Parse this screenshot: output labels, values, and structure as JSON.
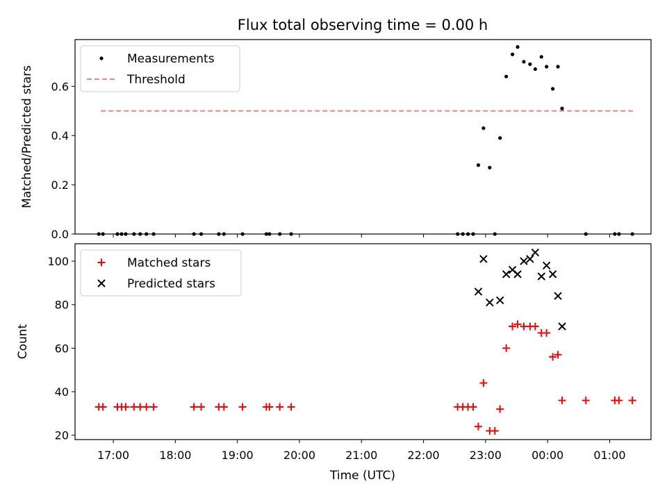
{
  "title": "Flux total observing time = 0.00 h",
  "colors": {
    "measurement": "#000000",
    "threshold": "#ff7f7f",
    "matched": "#ff0000",
    "predicted": "#000000"
  },
  "chart_data": [
    {
      "type": "scatter",
      "ylabel": "Matched/Predicted stars",
      "xlim": [
        "16:23",
        "01:40"
      ],
      "ylim": [
        0,
        0.79
      ],
      "yticks": [
        "0.0",
        "0.2",
        "0.4",
        "0.6"
      ],
      "legend": {
        "placement": "upper-left",
        "entries": [
          "Measurements",
          "Threshold"
        ]
      },
      "threshold": {
        "name": "Threshold",
        "y": 0.5,
        "x_start": "16:48",
        "x_end": "01:25"
      },
      "series": [
        {
          "name": "Measurements",
          "points": [
            [
              "16:46",
              0
            ],
            [
              "16:50",
              0
            ],
            [
              "17:04",
              0
            ],
            [
              "17:08",
              0
            ],
            [
              "17:12",
              0
            ],
            [
              "17:20",
              0
            ],
            [
              "17:26",
              0
            ],
            [
              "17:32",
              0
            ],
            [
              "17:39",
              0
            ],
            [
              "18:18",
              0
            ],
            [
              "18:25",
              0
            ],
            [
              "18:42",
              0
            ],
            [
              "18:47",
              0
            ],
            [
              "19:05",
              0
            ],
            [
              "19:28",
              0
            ],
            [
              "19:31",
              0
            ],
            [
              "19:41",
              0
            ],
            [
              "19:52",
              0
            ],
            [
              "22:33",
              0
            ],
            [
              "22:38",
              0
            ],
            [
              "22:43",
              0
            ],
            [
              "22:48",
              0
            ],
            [
              "22:53",
              0.28
            ],
            [
              "22:58",
              0.43
            ],
            [
              "23:04",
              0.27
            ],
            [
              "23:09",
              0
            ],
            [
              "23:14",
              0.39
            ],
            [
              "23:20",
              0.64
            ],
            [
              "23:26",
              0.73
            ],
            [
              "23:31",
              0.76
            ],
            [
              "23:37",
              0.7
            ],
            [
              "23:43",
              0.69
            ],
            [
              "23:48",
              0.67
            ],
            [
              "23:54",
              0.72
            ],
            [
              "23:59",
              0.68
            ],
            [
              "00:05",
              0.59
            ],
            [
              "00:10",
              0.68
            ],
            [
              "00:14",
              0.51
            ],
            [
              "00:37",
              0
            ],
            [
              "01:05",
              0
            ],
            [
              "01:09",
              0
            ],
            [
              "01:22",
              0
            ]
          ]
        }
      ]
    },
    {
      "type": "scatter",
      "xlabel": "Time (UTC)",
      "ylabel": "Count",
      "xlim": [
        "16:23",
        "01:40"
      ],
      "ylim": [
        18,
        108
      ],
      "yticks": [
        "20",
        "40",
        "60",
        "80",
        "100"
      ],
      "xticks": [
        "17:00",
        "18:00",
        "19:00",
        "20:00",
        "21:00",
        "22:00",
        "23:00",
        "00:00",
        "01:00"
      ],
      "legend": {
        "placement": "upper-left",
        "entries": [
          "Matched stars",
          "Predicted stars"
        ]
      },
      "series": [
        {
          "name": "Matched stars",
          "marker": "plus",
          "points": [
            [
              "16:46",
              33
            ],
            [
              "16:50",
              33
            ],
            [
              "17:04",
              33
            ],
            [
              "17:08",
              33
            ],
            [
              "17:12",
              33
            ],
            [
              "17:20",
              33
            ],
            [
              "17:26",
              33
            ],
            [
              "17:32",
              33
            ],
            [
              "17:39",
              33
            ],
            [
              "18:18",
              33
            ],
            [
              "18:25",
              33
            ],
            [
              "18:42",
              33
            ],
            [
              "18:47",
              33
            ],
            [
              "19:05",
              33
            ],
            [
              "19:28",
              33
            ],
            [
              "19:31",
              33
            ],
            [
              "19:41",
              33
            ],
            [
              "19:52",
              33
            ],
            [
              "22:33",
              33
            ],
            [
              "22:38",
              33
            ],
            [
              "22:43",
              33
            ],
            [
              "22:48",
              33
            ],
            [
              "22:53",
              24
            ],
            [
              "22:58",
              44
            ],
            [
              "23:04",
              22
            ],
            [
              "23:09",
              22
            ],
            [
              "23:14",
              32
            ],
            [
              "23:20",
              60
            ],
            [
              "23:26",
              70
            ],
            [
              "23:31",
              71
            ],
            [
              "23:37",
              70
            ],
            [
              "23:43",
              70
            ],
            [
              "23:48",
              70
            ],
            [
              "23:54",
              67
            ],
            [
              "23:59",
              67
            ],
            [
              "00:05",
              56
            ],
            [
              "00:10",
              57
            ],
            [
              "00:14",
              36
            ],
            [
              "00:37",
              36
            ],
            [
              "01:05",
              36
            ],
            [
              "01:09",
              36
            ],
            [
              "01:22",
              36
            ]
          ]
        },
        {
          "name": "Predicted stars",
          "marker": "x",
          "points": [
            [
              "22:53",
              86
            ],
            [
              "22:58",
              101
            ],
            [
              "23:04",
              81
            ],
            [
              "23:14",
              82
            ],
            [
              "23:20",
              94
            ],
            [
              "23:26",
              96
            ],
            [
              "23:31",
              94
            ],
            [
              "23:37",
              100
            ],
            [
              "23:43",
              101
            ],
            [
              "23:48",
              104
            ],
            [
              "23:54",
              93
            ],
            [
              "23:59",
              98
            ],
            [
              "00:05",
              94
            ],
            [
              "00:10",
              84
            ],
            [
              "00:14",
              70
            ]
          ]
        }
      ]
    }
  ]
}
